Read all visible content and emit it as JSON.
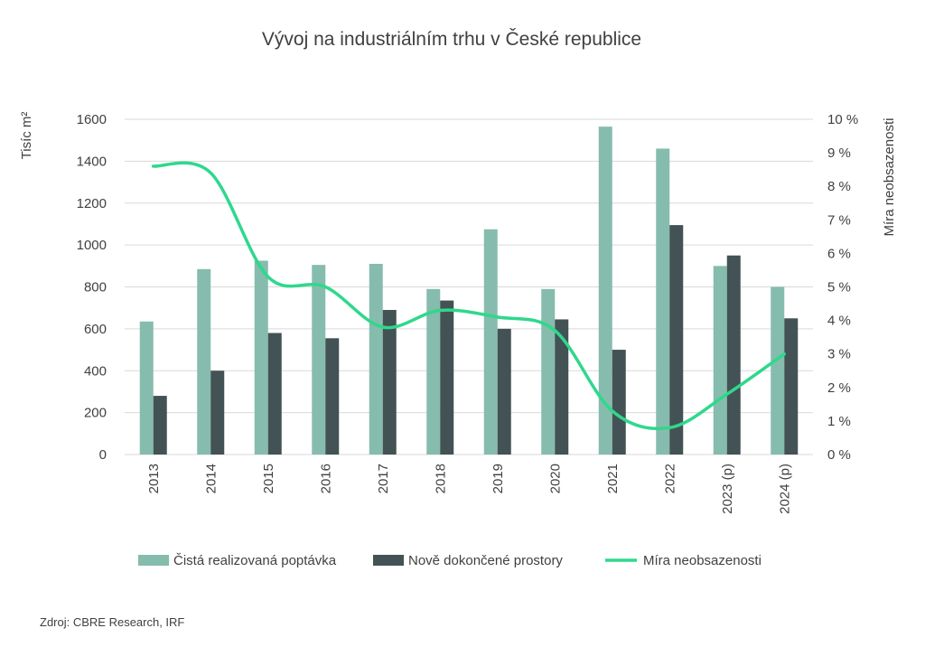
{
  "chart_data": {
    "type": "bar",
    "title": "Vývoj na industriálním trhu v České republice",
    "categories": [
      "2013",
      "2014",
      "2015",
      "2016",
      "2017",
      "2018",
      "2019",
      "2020",
      "2021",
      "2022",
      "2023 (p)",
      "2024 (p)"
    ],
    "ylabel": "Tisíc m²",
    "ylim": [
      0,
      1600
    ],
    "yticks": [
      "0",
      "200",
      "400",
      "600",
      "800",
      "1000",
      "1200",
      "1400",
      "1600"
    ],
    "y2label": "Míra neobsazenosti",
    "y2lim": [
      0,
      10
    ],
    "y2ticks": [
      "0 %",
      "1 %",
      "2 %",
      "3 %",
      "4 %",
      "5 %",
      "6 %",
      "7 %",
      "8 %",
      "9 %",
      "10 %"
    ],
    "series": [
      {
        "name": "Čistá realizovaná poptávka",
        "type": "bar",
        "color": "#86bcad",
        "values": [
          635,
          885,
          925,
          905,
          910,
          790,
          1075,
          790,
          1565,
          1460,
          900,
          800
        ]
      },
      {
        "name": "Nově dokončené prostory",
        "type": "bar",
        "color": "#435254",
        "values": [
          280,
          400,
          580,
          555,
          690,
          735,
          600,
          645,
          500,
          1095,
          950,
          650
        ]
      },
      {
        "name": "Míra neobsazenosti",
        "type": "line",
        "axis": "right",
        "color": "#2fd88c",
        "values": [
          8.6,
          8.4,
          5.3,
          5.0,
          3.8,
          4.3,
          4.1,
          3.7,
          1.3,
          0.8,
          1.8,
          3.0
        ]
      }
    ],
    "grid": true,
    "legend": "bottom"
  },
  "source": "Zdroj: CBRE Research, IRF"
}
